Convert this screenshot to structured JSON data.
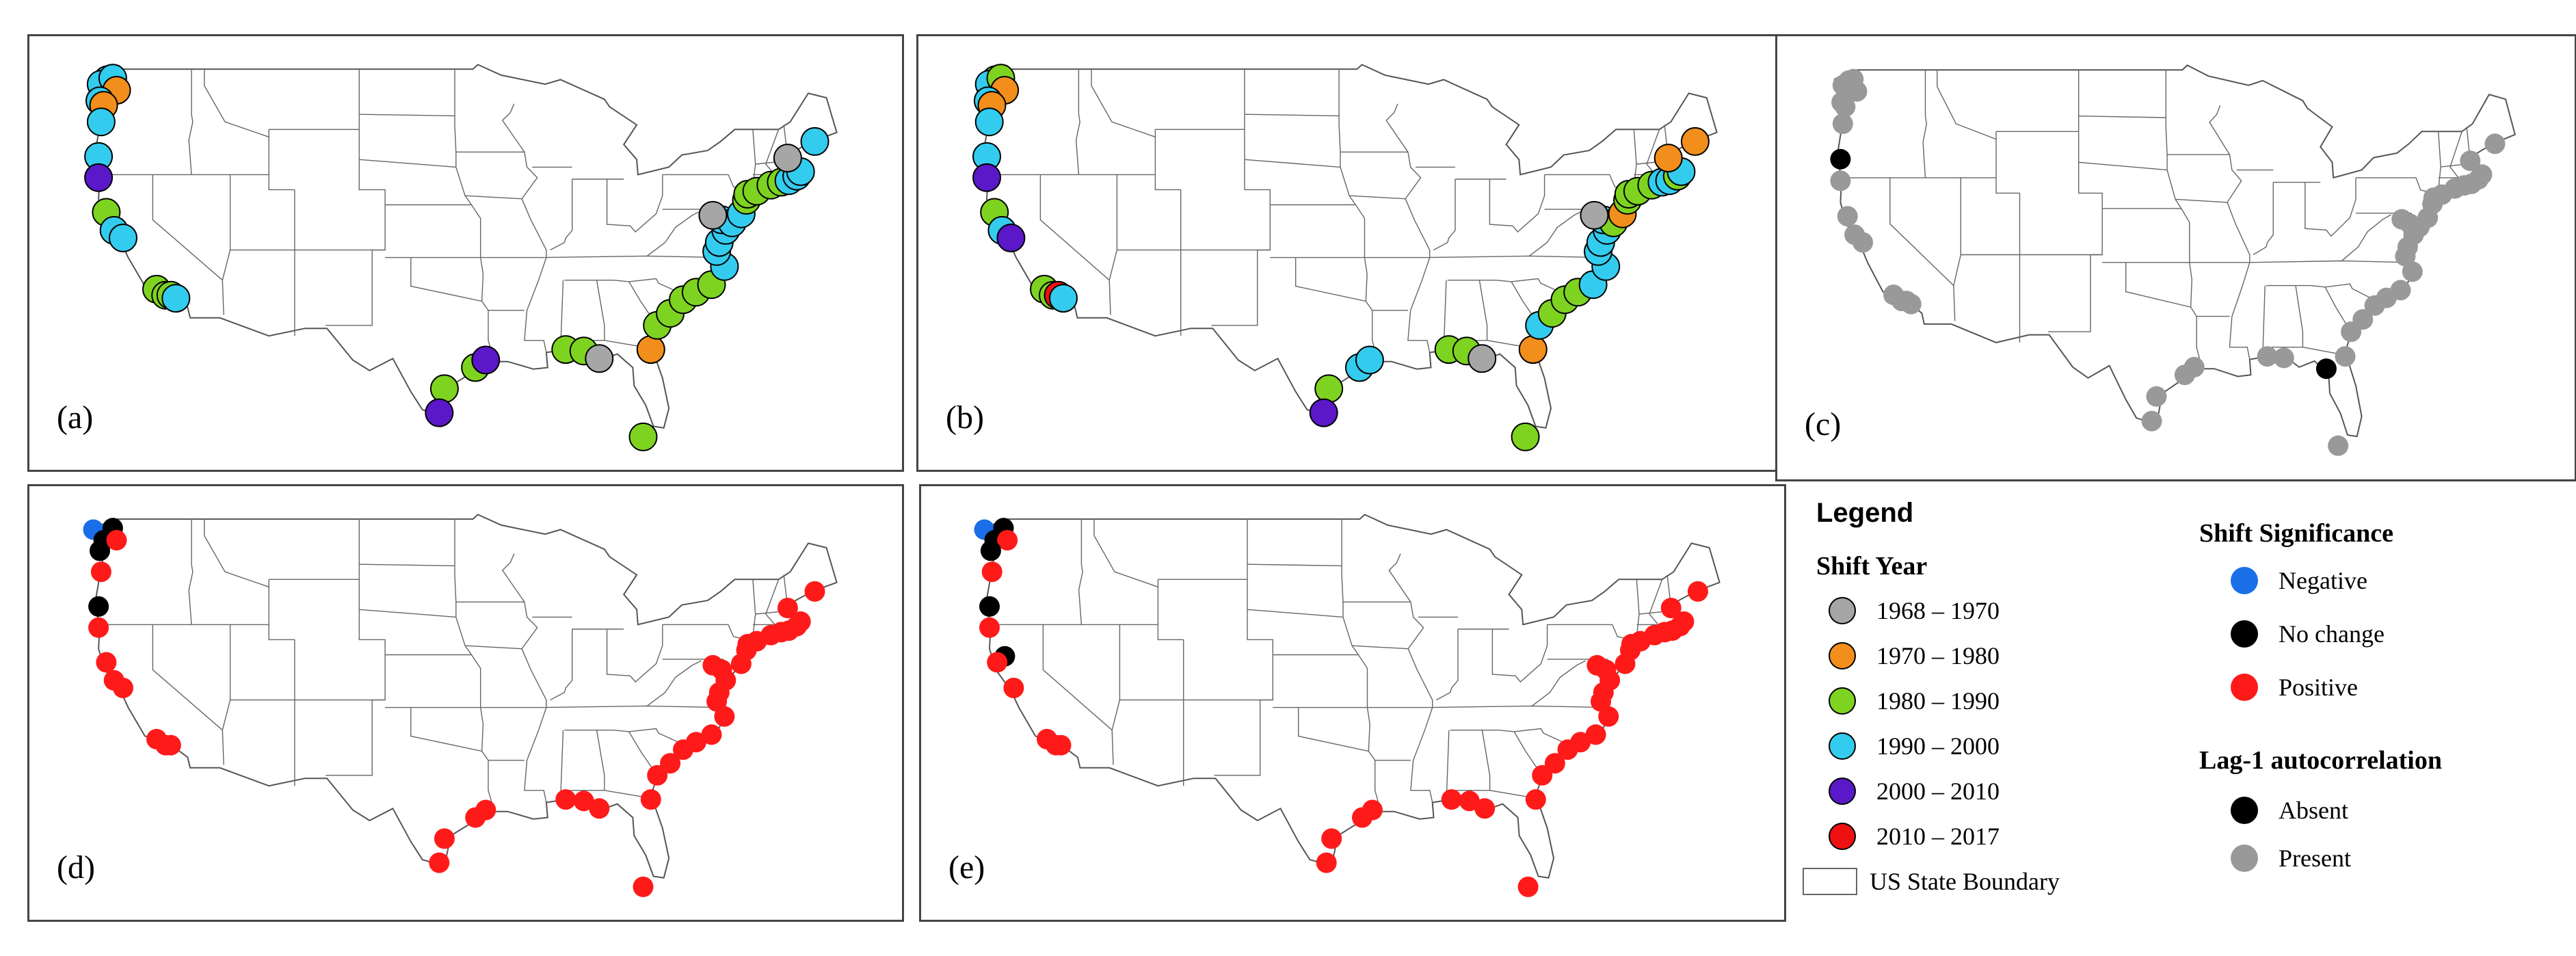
{
  "panels": [
    {
      "id": "a",
      "label": "(a)",
      "mode": "year",
      "points": [
        [
          "1990-2000",
          -123.5,
          48.3
        ],
        [
          "1990-2000",
          -124.0,
          48.0
        ],
        [
          "1990-2000",
          -123.1,
          48.4
        ],
        [
          "1970-1980",
          -122.8,
          47.6
        ],
        [
          "1990-2000",
          -124.1,
          46.9
        ],
        [
          "1970-1980",
          -123.8,
          46.6
        ],
        [
          "1990-2000",
          -124.0,
          45.5
        ],
        [
          "1990-2000",
          -124.2,
          43.2
        ],
        [
          "2000-2010",
          -124.2,
          41.8
        ],
        [
          "1980-1990",
          -123.6,
          39.5
        ],
        [
          "1990-2000",
          -123.0,
          38.3
        ],
        [
          "1990-2000",
          -122.3,
          37.8
        ],
        [
          "1980-1990",
          -119.7,
          34.4
        ],
        [
          "1980-1990",
          -119.0,
          34.0
        ],
        [
          "1980-1990",
          -118.6,
          34.0
        ],
        [
          "1990-2000",
          -118.2,
          33.8
        ],
        [
          "1980-1990",
          -97.4,
          27.8
        ],
        [
          "1980-1990",
          -95.0,
          29.2
        ],
        [
          "2000-2010",
          -94.2,
          29.7
        ],
        [
          "2000-2010",
          -97.8,
          26.2
        ],
        [
          "1980-1990",
          -88.0,
          30.4
        ],
        [
          "1980-1990",
          -86.6,
          30.3
        ],
        [
          "1968-1970",
          -85.4,
          29.8
        ],
        [
          "1980-1990",
          -82.0,
          24.6
        ],
        [
          "1970-1980",
          -81.4,
          30.4
        ],
        [
          "1980-1990",
          -80.9,
          32.0
        ],
        [
          "1980-1990",
          -79.9,
          32.8
        ],
        [
          "1980-1990",
          -78.9,
          33.7
        ],
        [
          "1980-1990",
          -77.9,
          34.2
        ],
        [
          "1980-1990",
          -76.7,
          34.7
        ],
        [
          "1990-2000",
          -75.7,
          35.9
        ],
        [
          "1990-2000",
          -76.3,
          36.9
        ],
        [
          "1990-2000",
          -76.1,
          37.5
        ],
        [
          "1990-2000",
          -75.6,
          38.3
        ],
        [
          "1990-2000",
          -75.9,
          39.0
        ],
        [
          "1990-2000",
          -75.1,
          38.8
        ],
        [
          "1968-1970",
          -76.6,
          39.3
        ],
        [
          "1990-2000",
          -74.4,
          39.4
        ],
        [
          "1980-1990",
          -74.0,
          40.3
        ],
        [
          "1980-1990",
          -73.9,
          40.7
        ],
        [
          "1980-1990",
          -73.2,
          40.9
        ],
        [
          "1980-1990",
          -72.1,
          41.3
        ],
        [
          "1980-1990",
          -71.3,
          41.5
        ],
        [
          "1990-2000",
          -70.7,
          41.6
        ],
        [
          "1990-2000",
          -70.1,
          41.9
        ],
        [
          "1990-2000",
          -69.8,
          42.2
        ],
        [
          "1968-1970",
          -70.8,
          43.1
        ],
        [
          "1990-2000",
          -68.7,
          44.2
        ]
      ]
    },
    {
      "id": "b",
      "label": "(b)",
      "mode": "year",
      "points": [
        [
          "1980-1990",
          -123.5,
          48.3
        ],
        [
          "1990-2000",
          -124.0,
          48.0
        ],
        [
          "1980-1990",
          -123.1,
          48.4
        ],
        [
          "1970-1980",
          -122.8,
          47.6
        ],
        [
          "1990-2000",
          -124.1,
          46.9
        ],
        [
          "1970-1980",
          -123.8,
          46.6
        ],
        [
          "1990-2000",
          -124.0,
          45.5
        ],
        [
          "1990-2000",
          -124.2,
          43.2
        ],
        [
          "2000-2010",
          -124.2,
          41.8
        ],
        [
          "1980-1990",
          -123.6,
          39.5
        ],
        [
          "1990-2000",
          -123.0,
          38.3
        ],
        [
          "2000-2010",
          -122.3,
          37.8
        ],
        [
          "1980-1990",
          -119.7,
          34.4
        ],
        [
          "1980-1990",
          -119.0,
          34.0
        ],
        [
          "2010-2017",
          -118.6,
          34.0
        ],
        [
          "1990-2000",
          -118.2,
          33.8
        ],
        [
          "1980-1990",
          -97.4,
          27.8
        ],
        [
          "1990-2000",
          -95.0,
          29.2
        ],
        [
          "1990-2000",
          -94.2,
          29.7
        ],
        [
          "2000-2010",
          -97.8,
          26.2
        ],
        [
          "1980-1990",
          -88.0,
          30.4
        ],
        [
          "1980-1990",
          -86.6,
          30.3
        ],
        [
          "1968-1970",
          -85.4,
          29.8
        ],
        [
          "1980-1990",
          -82.0,
          24.6
        ],
        [
          "1970-1980",
          -81.4,
          30.4
        ],
        [
          "1990-2000",
          -80.9,
          32.0
        ],
        [
          "1980-1990",
          -79.9,
          32.8
        ],
        [
          "1980-1990",
          -78.9,
          33.7
        ],
        [
          "1980-1990",
          -77.9,
          34.2
        ],
        [
          "1990-2000",
          -76.7,
          34.7
        ],
        [
          "1990-2000",
          -75.7,
          35.9
        ],
        [
          "1990-2000",
          -76.3,
          36.9
        ],
        [
          "1990-2000",
          -76.1,
          37.5
        ],
        [
          "1990-2000",
          -75.6,
          38.3
        ],
        [
          "1990-2000",
          -75.9,
          39.0
        ],
        [
          "1980-1990",
          -75.1,
          38.8
        ],
        [
          "1968-1970",
          -76.6,
          39.3
        ],
        [
          "1970-1980",
          -74.4,
          39.4
        ],
        [
          "1980-1990",
          -74.0,
          40.3
        ],
        [
          "1980-1990",
          -73.9,
          40.7
        ],
        [
          "1980-1990",
          -73.2,
          40.9
        ],
        [
          "1980-1990",
          -72.1,
          41.3
        ],
        [
          "1990-2000",
          -71.3,
          41.5
        ],
        [
          "1990-2000",
          -70.7,
          41.6
        ],
        [
          "1980-1990",
          -70.1,
          41.9
        ],
        [
          "1990-2000",
          -69.8,
          42.2
        ],
        [
          "1970-1980",
          -70.8,
          43.1
        ],
        [
          "1970-1980",
          -68.7,
          44.2
        ]
      ]
    },
    {
      "id": "c",
      "label": "(c)",
      "mode": "lag",
      "points": [
        [
          "Present",
          -123.5,
          48.3
        ],
        [
          "Present",
          -124.0,
          48.0
        ],
        [
          "Present",
          -123.1,
          48.4
        ],
        [
          "Present",
          -122.8,
          47.6
        ],
        [
          "Present",
          -124.1,
          46.9
        ],
        [
          "Present",
          -123.8,
          46.6
        ],
        [
          "Present",
          -124.0,
          45.5
        ],
        [
          "Absent",
          -124.2,
          43.2
        ],
        [
          "Present",
          -124.2,
          41.8
        ],
        [
          "Present",
          -123.6,
          39.5
        ],
        [
          "Present",
          -123.0,
          38.3
        ],
        [
          "Present",
          -122.3,
          37.8
        ],
        [
          "Present",
          -119.7,
          34.4
        ],
        [
          "Present",
          -119.0,
          34.0
        ],
        [
          "Present",
          -118.6,
          34.0
        ],
        [
          "Present",
          -118.2,
          33.8
        ],
        [
          "Present",
          -97.4,
          27.8
        ],
        [
          "Present",
          -95.0,
          29.2
        ],
        [
          "Present",
          -94.2,
          29.7
        ],
        [
          "Present",
          -97.8,
          26.2
        ],
        [
          "Present",
          -88.0,
          30.4
        ],
        [
          "Present",
          -86.6,
          30.3
        ],
        [
          "Absent",
          -83.0,
          29.6
        ],
        [
          "Present",
          -82.0,
          24.6
        ],
        [
          "Present",
          -81.4,
          30.4
        ],
        [
          "Present",
          -80.9,
          32.0
        ],
        [
          "Present",
          -79.9,
          32.8
        ],
        [
          "Present",
          -78.9,
          33.7
        ],
        [
          "Present",
          -77.9,
          34.2
        ],
        [
          "Present",
          -76.7,
          34.7
        ],
        [
          "Present",
          -75.7,
          35.9
        ],
        [
          "Present",
          -76.3,
          36.9
        ],
        [
          "Present",
          -76.1,
          37.5
        ],
        [
          "Present",
          -75.6,
          38.3
        ],
        [
          "Present",
          -75.9,
          39.0
        ],
        [
          "Present",
          -75.1,
          38.8
        ],
        [
          "Present",
          -76.6,
          39.3
        ],
        [
          "Present",
          -74.4,
          39.4
        ],
        [
          "Present",
          -74.0,
          40.3
        ],
        [
          "Present",
          -73.9,
          40.7
        ],
        [
          "Present",
          -73.2,
          40.9
        ],
        [
          "Present",
          -72.1,
          41.3
        ],
        [
          "Present",
          -71.3,
          41.5
        ],
        [
          "Present",
          -70.7,
          41.6
        ],
        [
          "Present",
          -70.1,
          41.9
        ],
        [
          "Present",
          -69.8,
          42.2
        ],
        [
          "Present",
          -70.8,
          43.1
        ],
        [
          "Present",
          -68.7,
          44.2
        ]
      ]
    },
    {
      "id": "d",
      "label": "(d)",
      "mode": "sig",
      "points": [
        [
          "Negative",
          -124.6,
          48.3
        ],
        [
          "No change",
          -123.1,
          48.4
        ],
        [
          "No change",
          -123.8,
          47.6
        ],
        [
          "No change",
          -124.1,
          46.9
        ],
        [
          "Positive",
          -122.8,
          47.6
        ],
        [
          "Positive",
          -124.0,
          45.5
        ],
        [
          "No change",
          -124.2,
          43.2
        ],
        [
          "Positive",
          -124.2,
          41.8
        ],
        [
          "Positive",
          -123.6,
          39.5
        ],
        [
          "Positive",
          -123.0,
          38.3
        ],
        [
          "Positive",
          -122.3,
          37.8
        ],
        [
          "Positive",
          -119.7,
          34.4
        ],
        [
          "Positive",
          -119.0,
          34.0
        ],
        [
          "Positive",
          -118.6,
          34.0
        ],
        [
          "Positive",
          -97.4,
          27.8
        ],
        [
          "Positive",
          -95.0,
          29.2
        ],
        [
          "Positive",
          -94.2,
          29.7
        ],
        [
          "Positive",
          -97.8,
          26.2
        ],
        [
          "Positive",
          -88.0,
          30.4
        ],
        [
          "Positive",
          -86.6,
          30.3
        ],
        [
          "Positive",
          -85.4,
          29.8
        ],
        [
          "Positive",
          -82.0,
          24.6
        ],
        [
          "Positive",
          -81.4,
          30.4
        ],
        [
          "Positive",
          -80.9,
          32.0
        ],
        [
          "Positive",
          -79.9,
          32.8
        ],
        [
          "Positive",
          -78.9,
          33.7
        ],
        [
          "Positive",
          -77.9,
          34.2
        ],
        [
          "Positive",
          -76.7,
          34.7
        ],
        [
          "Positive",
          -75.7,
          35.9
        ],
        [
          "Positive",
          -76.3,
          36.9
        ],
        [
          "Positive",
          -76.1,
          37.5
        ],
        [
          "Positive",
          -75.6,
          38.3
        ],
        [
          "Positive",
          -75.9,
          39.0
        ],
        [
          "Positive",
          -76.6,
          39.3
        ],
        [
          "Positive",
          -74.4,
          39.4
        ],
        [
          "Positive",
          -74.0,
          40.3
        ],
        [
          "Positive",
          -73.9,
          40.7
        ],
        [
          "Positive",
          -73.2,
          40.9
        ],
        [
          "Positive",
          -72.1,
          41.3
        ],
        [
          "Positive",
          -71.3,
          41.5
        ],
        [
          "Positive",
          -70.7,
          41.6
        ],
        [
          "Positive",
          -70.1,
          41.9
        ],
        [
          "Positive",
          -69.8,
          42.2
        ],
        [
          "Positive",
          -70.8,
          43.1
        ],
        [
          "Positive",
          -68.7,
          44.2
        ]
      ]
    },
    {
      "id": "e",
      "label": "(e)",
      "mode": "sig",
      "points": [
        [
          "Negative",
          -124.6,
          48.3
        ],
        [
          "No change",
          -123.1,
          48.4
        ],
        [
          "No change",
          -123.8,
          47.6
        ],
        [
          "Positive",
          -122.8,
          47.6
        ],
        [
          "No change",
          -124.1,
          46.9
        ],
        [
          "Positive",
          -124.0,
          45.5
        ],
        [
          "No change",
          -124.2,
          43.2
        ],
        [
          "Positive",
          -124.2,
          41.8
        ],
        [
          "No change",
          -123.0,
          39.9
        ],
        [
          "Positive",
          -123.6,
          39.5
        ],
        [
          "Positive",
          -122.3,
          37.8
        ],
        [
          "Positive",
          -119.7,
          34.4
        ],
        [
          "Positive",
          -119.0,
          34.0
        ],
        [
          "Positive",
          -118.6,
          34.0
        ],
        [
          "Positive",
          -97.4,
          27.8
        ],
        [
          "Positive",
          -95.0,
          29.2
        ],
        [
          "Positive",
          -94.2,
          29.7
        ],
        [
          "Positive",
          -97.8,
          26.2
        ],
        [
          "Positive",
          -88.0,
          30.4
        ],
        [
          "Positive",
          -86.6,
          30.3
        ],
        [
          "Positive",
          -85.4,
          29.8
        ],
        [
          "Positive",
          -82.0,
          24.6
        ],
        [
          "Positive",
          -81.4,
          30.4
        ],
        [
          "Positive",
          -80.9,
          32.0
        ],
        [
          "Positive",
          -79.9,
          32.8
        ],
        [
          "Positive",
          -78.9,
          33.7
        ],
        [
          "Positive",
          -77.9,
          34.2
        ],
        [
          "Positive",
          -76.7,
          34.7
        ],
        [
          "Positive",
          -75.7,
          35.9
        ],
        [
          "Positive",
          -76.3,
          36.9
        ],
        [
          "Positive",
          -76.1,
          37.5
        ],
        [
          "Positive",
          -75.6,
          38.3
        ],
        [
          "Positive",
          -75.9,
          39.0
        ],
        [
          "Positive",
          -76.6,
          39.3
        ],
        [
          "Positive",
          -74.4,
          39.4
        ],
        [
          "Positive",
          -74.0,
          40.3
        ],
        [
          "Positive",
          -73.9,
          40.7
        ],
        [
          "Positive",
          -73.2,
          40.9
        ],
        [
          "Positive",
          -72.1,
          41.3
        ],
        [
          "Positive",
          -71.3,
          41.5
        ],
        [
          "Positive",
          -70.7,
          41.6
        ],
        [
          "Positive",
          -70.1,
          41.9
        ],
        [
          "Positive",
          -69.8,
          42.2
        ],
        [
          "Positive",
          -70.8,
          43.1
        ],
        [
          "Positive",
          -68.7,
          44.2
        ]
      ]
    }
  ],
  "legend": {
    "title": "Legend",
    "shift_year_title": "Shift Year",
    "shift_years": [
      {
        "label": "1968 – 1970",
        "color": "#a6a6a6"
      },
      {
        "label": "1970 – 1980",
        "color": "#f28e1c"
      },
      {
        "label": "1980 – 1990",
        "color": "#7ed321"
      },
      {
        "label": "1990 – 2000",
        "color": "#33ccee"
      },
      {
        "label": "2000 – 2010",
        "color": "#5a18c8"
      },
      {
        "label": "2010 – 2017",
        "color": "#ee1111"
      }
    ],
    "boundary_label": "US State Boundary",
    "significance_title": "Shift Significance",
    "significance": [
      {
        "label": "Negative",
        "color": "#1a6ee8"
      },
      {
        "label": "No change",
        "color": "#000000"
      },
      {
        "label": "Positive",
        "color": "#ff1a1a"
      }
    ],
    "lag_title": "Lag-1 autocorrelation",
    "lag": [
      {
        "label": "Absent",
        "color": "#000000"
      },
      {
        "label": "Present",
        "color": "#999999"
      }
    ]
  },
  "color_keys": {
    "year": {
      "1968-1970": "#a6a6a6",
      "1970-1980": "#f28e1c",
      "1980-1990": "#7ed321",
      "1990-2000": "#33ccee",
      "2000-2010": "#5a18c8",
      "2010-2017": "#ee1111"
    },
    "sig": {
      "Negative": "#1a6ee8",
      "No change": "#000000",
      "Positive": "#ff1a1a"
    },
    "lag": {
      "Absent": "#000000",
      "Present": "#999999"
    }
  }
}
